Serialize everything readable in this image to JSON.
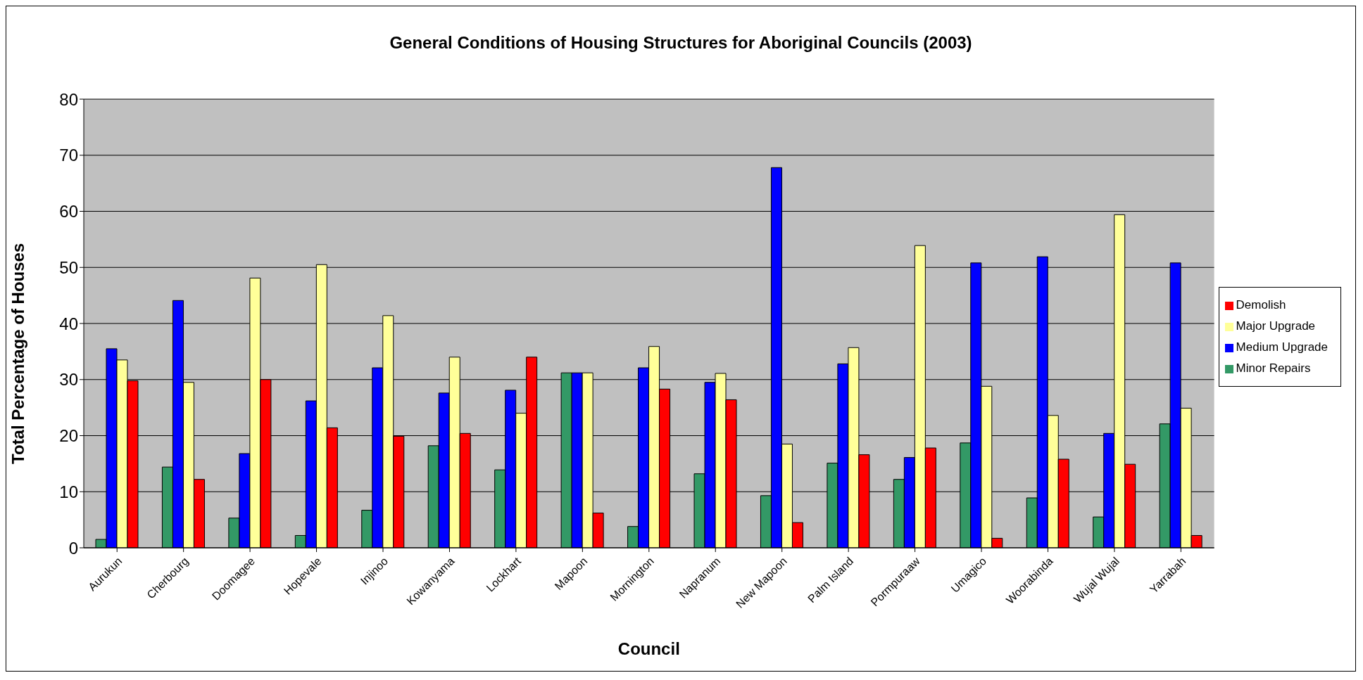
{
  "chart_data": {
    "type": "bar",
    "title": "General Conditions of Housing Structures for Aboriginal Councils (2003)",
    "xlabel": "Council",
    "ylabel": "Total Percentage of Houses",
    "categories": [
      "Aurukun",
      "Cherbourg",
      "Doomagee",
      "Hopevale",
      "Injinoo",
      "Kowanyama",
      "Lockhart",
      "Mapoon",
      "Mornington",
      "Napranum",
      "New Mapoon",
      "Palm Island",
      "Pormpuraaw",
      "Umagico",
      "Woorabinda",
      "Wujal Wujal",
      "Yarrabah"
    ],
    "series": [
      {
        "name": "Minor Repairs",
        "color": "#339966",
        "values": [
          1.5,
          14.4,
          5.3,
          2.2,
          6.7,
          18.2,
          13.9,
          31.2,
          3.8,
          13.2,
          9.3,
          15.1,
          12.2,
          18.7,
          8.9,
          5.5,
          22.1
        ]
      },
      {
        "name": "Medium Upgrade",
        "color": "#0000ff",
        "values": [
          35.5,
          44.1,
          16.8,
          26.2,
          32.1,
          27.6,
          28.1,
          31.2,
          32.1,
          29.5,
          67.8,
          32.8,
          16.1,
          50.8,
          51.9,
          20.4,
          50.8
        ]
      },
      {
        "name": "Major Upgrade",
        "color": "#ffff99",
        "values": [
          33.5,
          29.5,
          48.1,
          50.5,
          41.4,
          34,
          24,
          31.2,
          35.9,
          31.1,
          18.5,
          35.7,
          53.9,
          28.8,
          23.6,
          59.4,
          24.9
        ]
      },
      {
        "name": "Demolish",
        "color": "#ff0000",
        "values": [
          29.8,
          12.2,
          30,
          21.4,
          19.9,
          20.4,
          34,
          6.2,
          28.3,
          26.4,
          4.5,
          16.6,
          17.8,
          1.7,
          15.8,
          14.9,
          2.2
        ]
      }
    ],
    "ylim": [
      0,
      80
    ],
    "yticks": [
      0,
      10,
      20,
      30,
      40,
      50,
      60,
      70,
      80
    ],
    "grid": "y",
    "legend": "right"
  }
}
